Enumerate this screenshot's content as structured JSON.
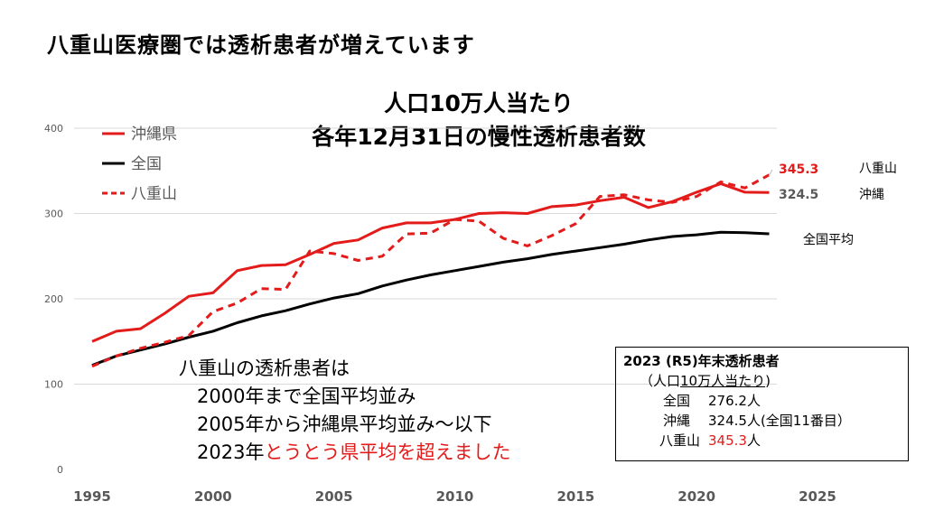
{
  "slide_title": "八重山医療圏では透析患者が増えています",
  "chart_title": [
    "人口10万人当たり",
    "各年12月31日の慢性透析患者数"
  ],
  "colors": {
    "okinawa": "#e31b1b",
    "national": "#000000",
    "yaeyama": "#e31b1b",
    "highlight": "#e31b1b",
    "grid": "#d9d9d9"
  },
  "chart_data": {
    "type": "line",
    "title": "人口10万人当たり 各年12月31日の慢性透析患者数",
    "xlabel": "",
    "ylabel": "",
    "xlim": [
      1995,
      2025
    ],
    "ylim": [
      0,
      400
    ],
    "x_ticks": [
      1995,
      2000,
      2005,
      2010,
      2015,
      2020,
      2025
    ],
    "y_ticks": [
      0,
      100,
      200,
      300,
      400
    ],
    "grid": true,
    "legend_position": "top-left",
    "x": [
      1995,
      1996,
      1997,
      1998,
      1999,
      2000,
      2001,
      2002,
      2003,
      2004,
      2005,
      2006,
      2007,
      2008,
      2009,
      2010,
      2011,
      2012,
      2013,
      2014,
      2015,
      2016,
      2017,
      2018,
      2019,
      2020,
      2021,
      2022,
      2023
    ],
    "series": [
      {
        "name": "沖縄県",
        "style": "solid-red",
        "end_label": "沖縄",
        "end_value_label": "324.5",
        "values": [
          150,
          162,
          165,
          183,
          203,
          207,
          233,
          239,
          240,
          252,
          265,
          269,
          283,
          289,
          289,
          293,
          300,
          301,
          300,
          308,
          310,
          315,
          319,
          307,
          314,
          325,
          335,
          325,
          324.5
        ]
      },
      {
        "name": "全国",
        "style": "solid-black",
        "end_label": "全国平均",
        "values": [
          122,
          133,
          140,
          147,
          155,
          162,
          172,
          180,
          186,
          194,
          201,
          206,
          215,
          222,
          228,
          233,
          238,
          243,
          247,
          252,
          256,
          260,
          264,
          269,
          273,
          275,
          278,
          277.5,
          276.2
        ]
      },
      {
        "name": "八重山",
        "style": "dashed-red",
        "end_label": "八重山",
        "end_value_label": "345.3",
        "values": [
          121,
          133,
          142,
          149,
          157,
          185,
          195,
          212,
          211,
          256,
          253,
          245,
          250,
          276,
          277,
          293,
          291,
          271,
          262,
          274,
          288,
          320,
          322,
          316,
          313,
          320,
          337,
          330,
          345.3
        ]
      }
    ]
  },
  "annotation": {
    "line1": "八重山の透析患者は",
    "line2": "2000年まで全国平均並み",
    "line3": "2005年から沖縄県平均並み～以下",
    "line4_prefix": "2023年",
    "line4_highlight": "とうとう県平均を超えました"
  },
  "info_box": {
    "title": "2023 (R5)年末透析患者",
    "subtitle_open": "（人口",
    "subtitle_underlined": "10万人当たり",
    "subtitle_close": ")",
    "rows": [
      {
        "label": "全国",
        "value": "276.2人"
      },
      {
        "label": "沖縄",
        "value": "324.5人(全国11番目）"
      },
      {
        "label": "八重山",
        "value_highlight": "345.3",
        "value_suffix": "人"
      }
    ]
  }
}
